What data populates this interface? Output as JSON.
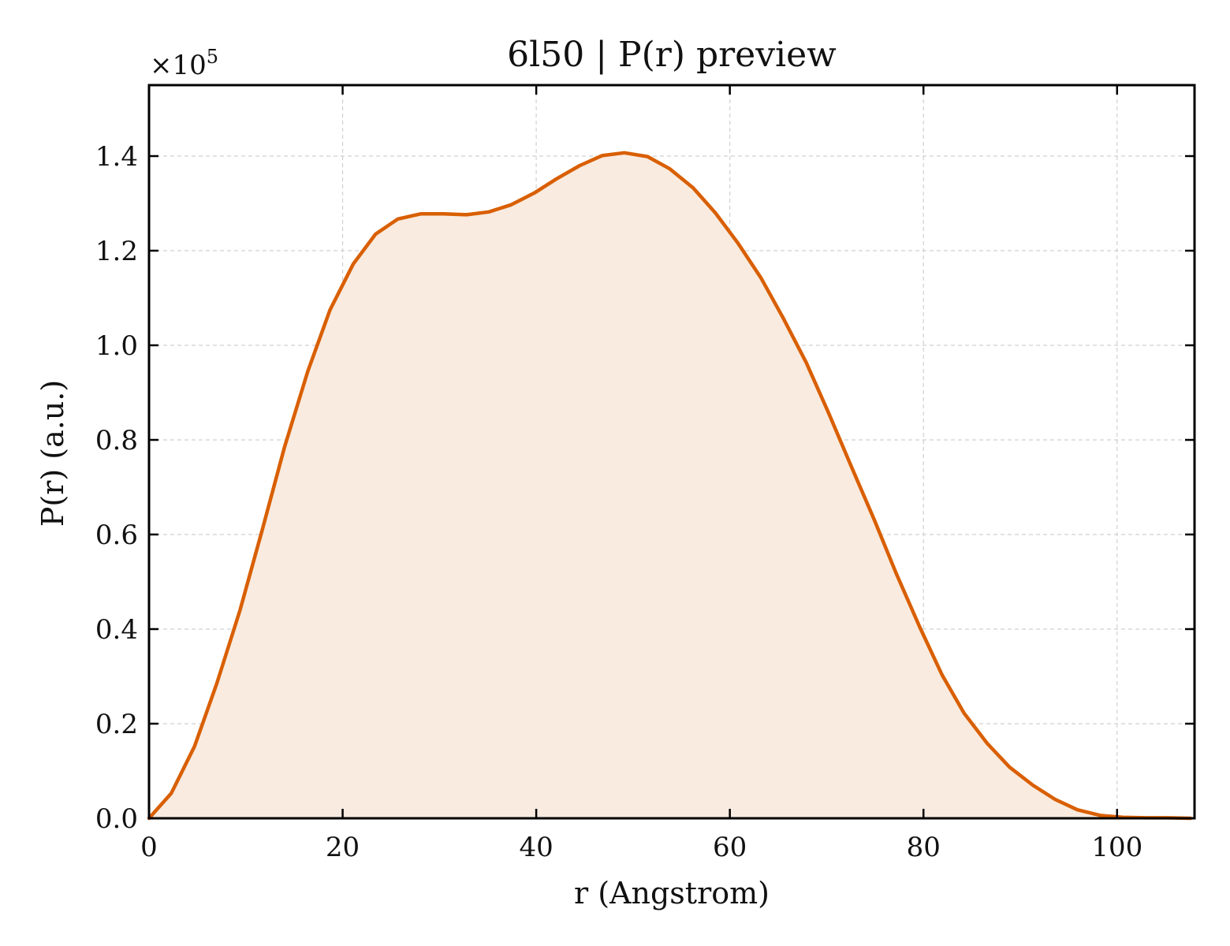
{
  "chart_data": {
    "type": "area",
    "title": "6l50 | P(r) preview",
    "xlabel": "r (Angstrom)",
    "ylabel": "P(r) (a.u.)",
    "y_multiplier": "×10",
    "y_multiplier_exp": "5",
    "xlim": [
      0,
      108
    ],
    "ylim": [
      0,
      1.55
    ],
    "x_ticks": [
      0,
      20,
      40,
      60,
      80,
      100
    ],
    "x_tick_labels": [
      "0",
      "20",
      "40",
      "60",
      "80",
      "100"
    ],
    "y_ticks": [
      0.0,
      0.2,
      0.4,
      0.6,
      0.8,
      1.0,
      1.2,
      1.4
    ],
    "y_tick_labels": [
      "0.0",
      "0.2",
      "0.4",
      "0.6",
      "0.8",
      "1.0",
      "1.2",
      "1.4"
    ],
    "grid": true,
    "line_color": "#d95f02",
    "fill_color": "#f9ebe0",
    "series": [
      {
        "x": [
          0,
          2.3,
          4.7,
          7.0,
          9.4,
          11.7,
          14.0,
          16.4,
          18.7,
          21.1,
          23.4,
          25.7,
          28.1,
          30.4,
          32.8,
          35.1,
          37.4,
          39.8,
          42.1,
          44.5,
          46.8,
          49.1,
          51.5,
          53.8,
          56.2,
          58.5,
          60.8,
          63.2,
          65.5,
          67.9,
          70.2,
          72.5,
          74.9,
          77.2,
          79.6,
          81.9,
          84.2,
          86.6,
          88.9,
          91.3,
          93.6,
          95.9,
          98.3,
          100.6,
          103.0,
          105.3,
          107.6
        ],
        "y": [
          0.0,
          0.053,
          0.152,
          0.285,
          0.44,
          0.61,
          0.785,
          0.945,
          1.075,
          1.172,
          1.235,
          1.267,
          1.278,
          1.278,
          1.276,
          1.282,
          1.297,
          1.322,
          1.352,
          1.38,
          1.401,
          1.407,
          1.399,
          1.373,
          1.333,
          1.28,
          1.217,
          1.143,
          1.058,
          0.963,
          0.857,
          0.746,
          0.632,
          0.517,
          0.405,
          0.304,
          0.222,
          0.158,
          0.108,
          0.07,
          0.04,
          0.018,
          0.006,
          0.002,
          0.001,
          0.001,
          0.0
        ]
      }
    ]
  }
}
